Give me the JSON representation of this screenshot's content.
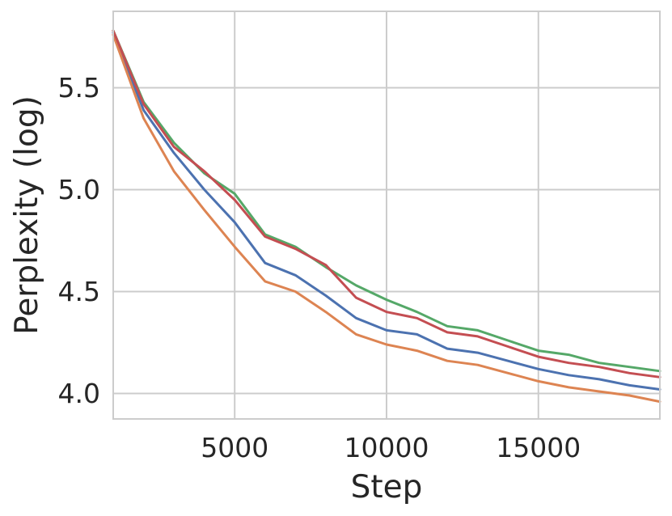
{
  "chart_data": {
    "type": "line",
    "title": "",
    "xlabel": "Step",
    "ylabel": "Perplexity (log)",
    "xlim": [
      1000,
      19000
    ],
    "ylim": [
      3.875,
      5.875
    ],
    "xticks": [
      5000,
      10000,
      15000
    ],
    "yticks": [
      4.0,
      4.5,
      5.0,
      5.5
    ],
    "xtick_labels": [
      "5000",
      "10000",
      "15000"
    ],
    "ytick_labels": [
      "4.0",
      "4.5",
      "5.0",
      "5.5"
    ],
    "grid": true,
    "legend": "none",
    "x": [
      1000,
      2000,
      3000,
      4000,
      5000,
      6000,
      7000,
      8000,
      9000,
      10000,
      11000,
      12000,
      13000,
      14000,
      15000,
      16000,
      17000,
      18000,
      19000
    ],
    "series": [
      {
        "color": "#4c72b0",
        "values": [
          5.77,
          5.39,
          5.18,
          5.0,
          4.84,
          4.64,
          4.58,
          4.48,
          4.37,
          4.31,
          4.29,
          4.22,
          4.2,
          4.16,
          4.12,
          4.09,
          4.07,
          4.04,
          4.02
        ]
      },
      {
        "color": "#dd8452",
        "values": [
          5.76,
          5.35,
          5.09,
          4.9,
          4.72,
          4.55,
          4.5,
          4.4,
          4.29,
          4.24,
          4.21,
          4.16,
          4.14,
          4.1,
          4.06,
          4.03,
          4.01,
          3.99,
          3.96
        ]
      },
      {
        "color": "#55a868",
        "values": [
          5.78,
          5.43,
          5.23,
          5.08,
          4.98,
          4.78,
          4.72,
          4.62,
          4.53,
          4.46,
          4.4,
          4.33,
          4.31,
          4.26,
          4.21,
          4.19,
          4.15,
          4.13,
          4.11
        ]
      },
      {
        "color": "#c44e52",
        "values": [
          5.78,
          5.42,
          5.21,
          5.09,
          4.95,
          4.77,
          4.71,
          4.63,
          4.47,
          4.4,
          4.37,
          4.3,
          4.28,
          4.23,
          4.18,
          4.15,
          4.13,
          4.1,
          4.08
        ]
      }
    ]
  }
}
